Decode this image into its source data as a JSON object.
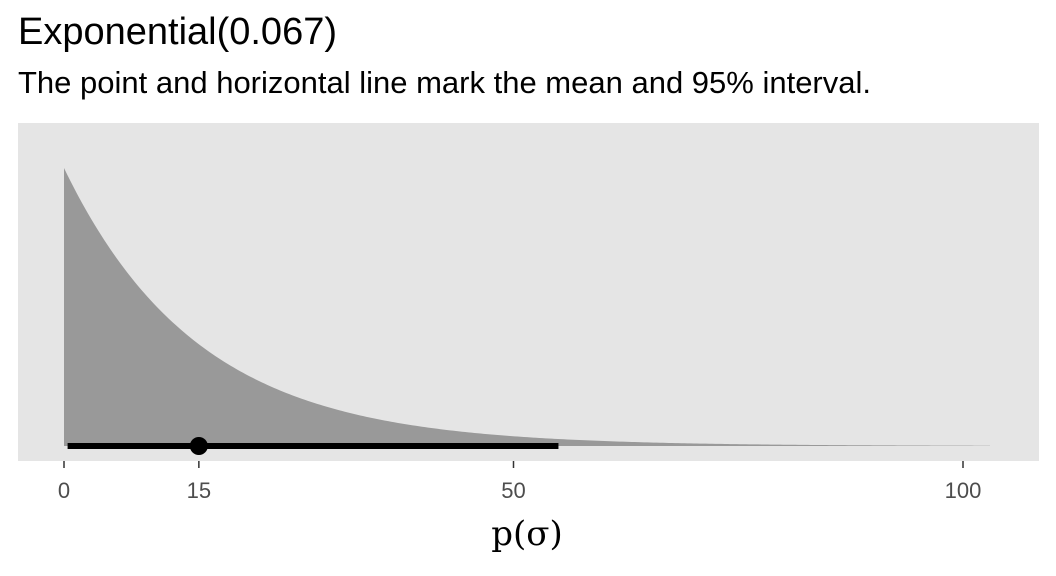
{
  "chart_data": {
    "type": "area",
    "title": "Exponential(0.067)",
    "subtitle": "The point and horizontal line mark the mean and 95% interval.",
    "xlabel": "p(σ)",
    "ylabel": "",
    "distribution": {
      "family": "Exponential",
      "rate": 0.067
    },
    "density_x_range": [
      0,
      103
    ],
    "xlim": [
      0,
      103
    ],
    "x_ticks": [
      0,
      15,
      50,
      100
    ],
    "x_tick_labels": [
      "0",
      "15",
      "50",
      "100"
    ],
    "mean": 15,
    "interval_95": [
      0.4,
      55
    ],
    "grid": false,
    "legend": "none",
    "colors": {
      "panel_background": "#e5e5e5",
      "density_fill": "#999999",
      "interval": "#000000",
      "axis_text": "#4d4d4d"
    }
  }
}
